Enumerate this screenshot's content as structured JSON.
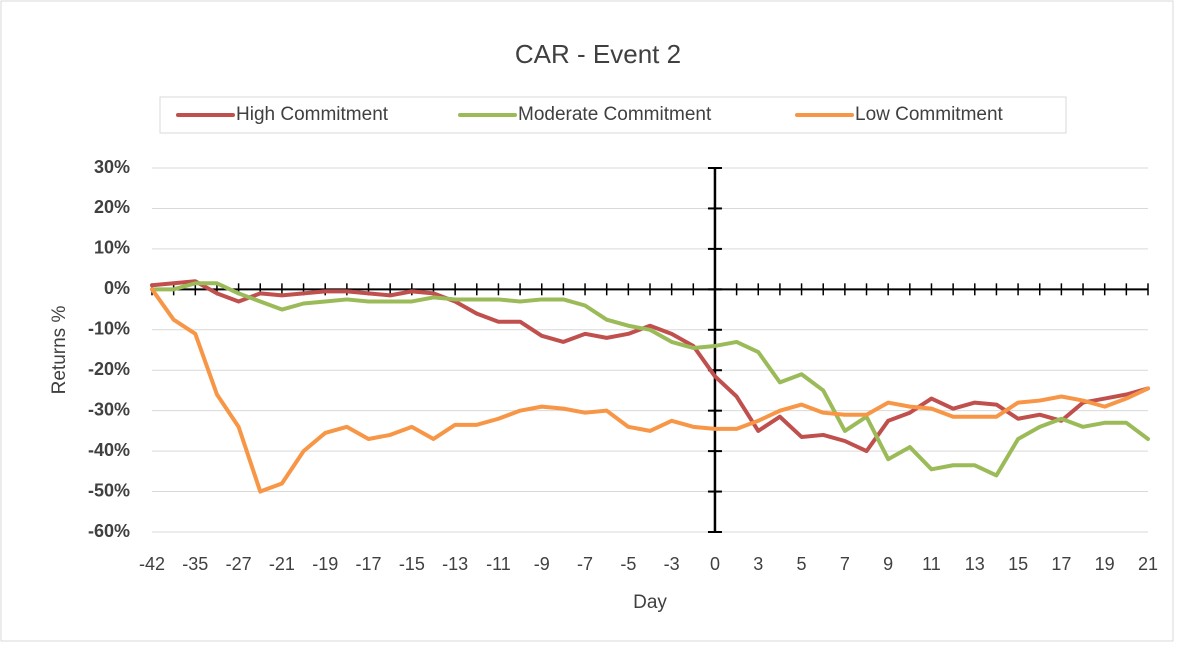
{
  "chart_data": {
    "type": "line",
    "title": "CAR - Event 2",
    "x_label": "Day",
    "y_label": "Returns %",
    "categories": [
      -42,
      null,
      -35,
      null,
      -27,
      null,
      -21,
      null,
      -19,
      null,
      -17,
      null,
      -15,
      null,
      -13,
      null,
      -11,
      null,
      -9,
      null,
      -7,
      null,
      -5,
      null,
      -3,
      null,
      0,
      null,
      3,
      null,
      5,
      null,
      7,
      null,
      9,
      null,
      11,
      null,
      13,
      null,
      15,
      null,
      17,
      null,
      19,
      null,
      21
    ],
    "series": [
      {
        "name": "High Commitment",
        "color": "#c0504d",
        "values": [
          1,
          1.5,
          2,
          -1,
          -3,
          -1,
          -1.5,
          -1,
          -0.5,
          -0.5,
          -1,
          -1.5,
          -0.5,
          -1,
          -3,
          -6,
          -8,
          -8,
          -11.5,
          -13,
          -11,
          -12,
          -11,
          -9,
          -11,
          -14,
          -21.5,
          -26.5,
          -35,
          -31.5,
          -36.5,
          -36,
          -37.5,
          -40,
          -32.5,
          -30.5,
          -27,
          -29.5,
          -28,
          -28.5,
          -32,
          -31,
          -32.5,
          -28,
          -27,
          -26,
          -24.5
        ]
      },
      {
        "name": "Moderate Commitment",
        "color": "#9bbb59",
        "values": [
          0,
          0,
          1.5,
          1.5,
          -1,
          -3,
          -5,
          -3.5,
          -3,
          -2.5,
          -3,
          -3,
          -3,
          -2,
          -2.5,
          -2.5,
          -2.5,
          -3,
          -2.5,
          -2.5,
          -4,
          -7.5,
          -9,
          -10,
          -13,
          -14.5,
          -14,
          -13,
          -15.5,
          -23,
          -21,
          -25,
          -35,
          -31.5,
          -42,
          -39,
          -44.5,
          -43.5,
          -43.5,
          -46,
          -37,
          -34,
          -32,
          -34,
          -33,
          -33,
          -37
        ]
      },
      {
        "name": "Low Commitment",
        "color": "#f79646",
        "values": [
          0,
          -7.5,
          -11,
          -26,
          -34,
          -50,
          -48,
          -40,
          -35.5,
          -34,
          -37,
          -36,
          -34,
          -37,
          -33.5,
          -33.5,
          -32,
          -30,
          -29,
          -29.5,
          -30.5,
          -30,
          -34,
          -35,
          -32.5,
          -34,
          -34.5,
          -34.5,
          -32.5,
          -30,
          -28.5,
          -30.5,
          -31,
          -31,
          -28,
          -29,
          -29.5,
          -31.5,
          -31.5,
          -31.5,
          -28,
          -27.5,
          -26.5,
          -27.5,
          -29,
          -27,
          -24.5
        ]
      }
    ],
    "ylim": [
      -60,
      30
    ],
    "yticks": [
      {
        "value": -60,
        "label": "-60%"
      },
      {
        "value": -50,
        "label": "-50%"
      },
      {
        "value": -40,
        "label": "-40%"
      },
      {
        "value": -30,
        "label": "-30%"
      },
      {
        "value": -20,
        "label": "-20%"
      },
      {
        "value": -10,
        "label": "-10%"
      },
      {
        "value": 0,
        "label": "0%"
      },
      {
        "value": 10,
        "label": "10%"
      },
      {
        "value": 20,
        "label": "20%"
      },
      {
        "value": 30,
        "label": "30%"
      }
    ],
    "y_axis_at": 0,
    "grid": true,
    "legend": "top"
  }
}
